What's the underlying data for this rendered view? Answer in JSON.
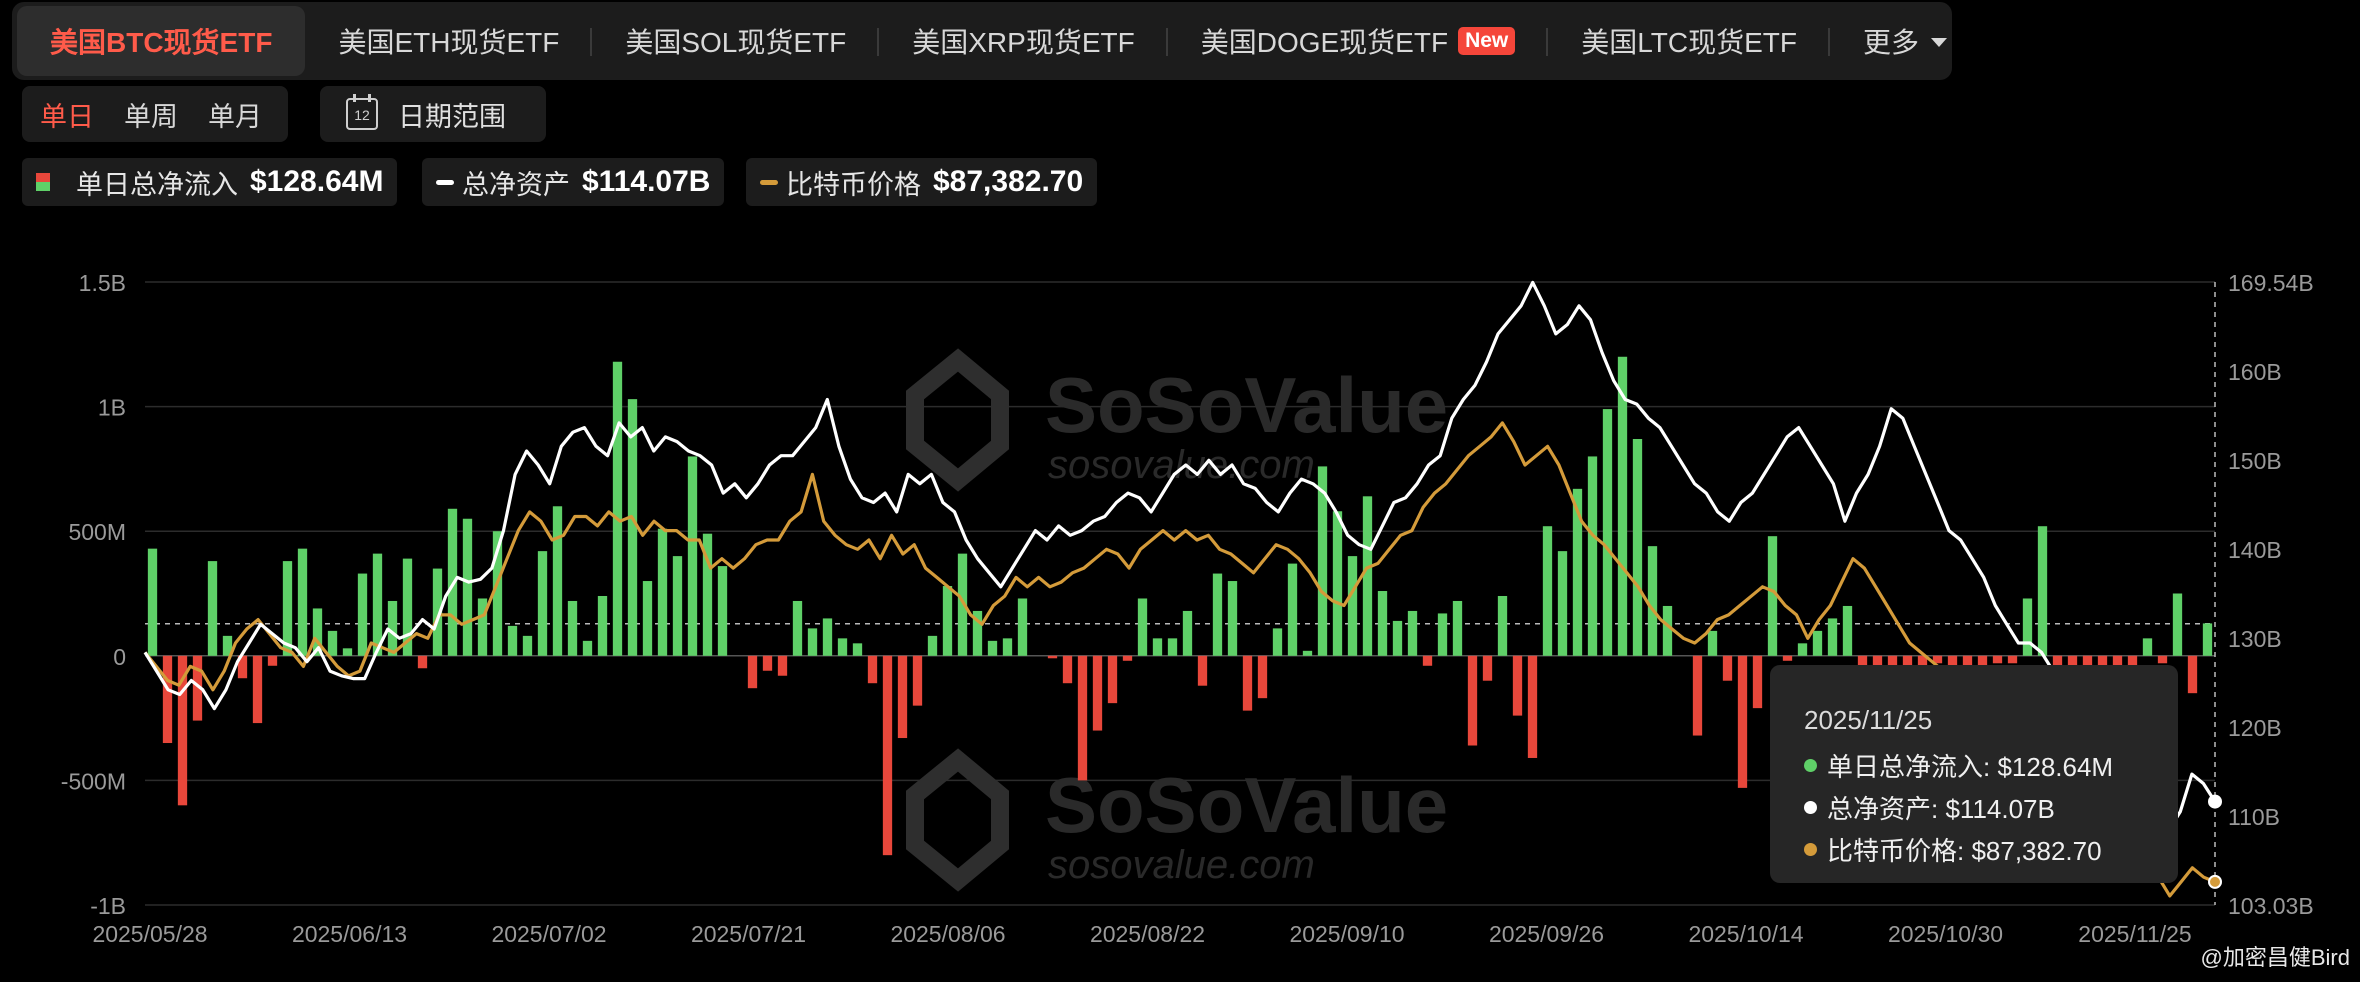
{
  "tabs": [
    {
      "label": "美国BTC现货ETF",
      "active": true
    },
    {
      "label": "美国ETH现货ETF"
    },
    {
      "label": "美国SOL现货ETF"
    },
    {
      "label": "美国XRP现货ETF"
    },
    {
      "label": "美国DOGE现货ETF",
      "badge": "New"
    },
    {
      "label": "美国LTC现货ETF"
    },
    {
      "label": "更多"
    }
  ],
  "period": {
    "daily": "单日",
    "weekly": "单周",
    "monthly": "单月"
  },
  "date_range": {
    "label": "日期范围",
    "icon_text": "12"
  },
  "legend": {
    "flow_label": "单日总净流入",
    "flow_value": "$128.64M",
    "assets_label": "总净资产",
    "assets_value": "$114.07B",
    "price_label": "比特币价格",
    "price_value": "$87,382.70"
  },
  "watermark": {
    "brand": "SoSoValue",
    "url": "sosovalue.com"
  },
  "tooltip": {
    "date": "2025/11/25",
    "flow": "单日总净流入: $128.64M",
    "assets": "总净资产: $114.07B",
    "price": "比特币价格: $87,382.70"
  },
  "credit": "@加密昌健Bird",
  "colors": {
    "inflow": "#5fd068",
    "outflow": "#e8473b",
    "assets": "#ffffff",
    "price": "#d49b3a"
  },
  "chart_data": {
    "type": "bar",
    "y_left": {
      "ticks": [
        "1.5B",
        "1B",
        "500M",
        "0",
        "-500M",
        "-1B"
      ],
      "range": [
        -1000,
        1500
      ],
      "unit": "M"
    },
    "y_right": {
      "ticks": [
        "169.54B",
        "160B",
        "150B",
        "140B",
        "130B",
        "120B",
        "110B",
        "103.03B"
      ],
      "range": [
        103.03,
        169.54
      ],
      "unit": "B"
    },
    "x_ticks": [
      "2025/05/28",
      "2025/06/13",
      "2025/07/02",
      "2025/07/21",
      "2025/08/06",
      "2025/08/22",
      "2025/09/10",
      "2025/09/26",
      "2025/10/14",
      "2025/10/30",
      "2025/11/25"
    ],
    "series": [
      {
        "name": "单日总净流入",
        "kind": "bar",
        "values": [
          430,
          -350,
          -600,
          -260,
          380,
          80,
          -90,
          -270,
          -40,
          380,
          430,
          190,
          100,
          30,
          330,
          410,
          220,
          390,
          -50,
          350,
          590,
          550,
          230,
          500,
          120,
          80,
          420,
          600,
          220,
          60,
          240,
          1180,
          1030,
          300,
          510,
          400,
          800,
          490,
          360,
          0,
          -130,
          -60,
          -80,
          220,
          110,
          150,
          70,
          50,
          -110,
          -800,
          -330,
          -200,
          80,
          280,
          410,
          180,
          60,
          70,
          230,
          0,
          -10,
          -110,
          -500,
          -300,
          -190,
          -20,
          230,
          70,
          70,
          180,
          -120,
          330,
          300,
          -220,
          -170,
          110,
          370,
          20,
          760,
          580,
          400,
          640,
          260,
          140,
          180,
          -40,
          170,
          220,
          -360,
          -100,
          240,
          -240,
          -410,
          520,
          420,
          670,
          800,
          990,
          1200,
          870,
          440,
          200,
          0,
          -320,
          100,
          -100,
          -530,
          -210,
          480,
          -20,
          50,
          100,
          150,
          200,
          -40,
          -40,
          -40,
          -40,
          -40,
          -30,
          -40,
          -40,
          -40,
          -30,
          -30,
          230,
          520,
          -40,
          -40,
          -40,
          -40,
          -40,
          -40,
          70,
          -30,
          250,
          -150,
          130
        ]
      },
      {
        "name": "总净资产",
        "kind": "line",
        "values": [
          130.0,
          128.0,
          126.0,
          125.5,
          127.0,
          126.0,
          124.0,
          126.0,
          129.0,
          131.0,
          133.0,
          132.0,
          131.0,
          130.5,
          129.0,
          130.5,
          128.0,
          127.5,
          127.2,
          127.2,
          130.0,
          132.5,
          131.5,
          132.0,
          133.5,
          132.5,
          136.0,
          138.0,
          137.5,
          137.8,
          139.0,
          143.0,
          149.0,
          151.5,
          150.0,
          148.0,
          152.0,
          153.5,
          154.0,
          152.0,
          151.0,
          154.5,
          153.0,
          154.0,
          151.5,
          153.0,
          152.5,
          151.5,
          151.0,
          150.0,
          147.0,
          148.0,
          146.5,
          148.0,
          150.0,
          151.0,
          151.0,
          152.5,
          154.0,
          157.0,
          152.0,
          148.5,
          146.5,
          146.0,
          147.0,
          145.0,
          149.0,
          148.0,
          149.0,
          146.0,
          145.0,
          142.0,
          140.0,
          138.5,
          137.0,
          139.0,
          141.0,
          143.0,
          142.0,
          143.5,
          142.5,
          143.0,
          144.0,
          144.5,
          146.0,
          147.0,
          146.5,
          145.0,
          147.0,
          149.0,
          150.0,
          149.0,
          150.5,
          149.0,
          150.0,
          148.0,
          147.5,
          146.0,
          145.0,
          147.0,
          148.5,
          148.0,
          147.0,
          145.0,
          142.5,
          141.5,
          141.0,
          143.5,
          146.0,
          146.5,
          148.0,
          150.0,
          151.0,
          155.0,
          157.0,
          158.5,
          161.0,
          164.0,
          165.5,
          167.0,
          169.5,
          167.0,
          164.0,
          165.0,
          167.0,
          165.5,
          162.0,
          159.0,
          157.0,
          156.5,
          155.0,
          154.0,
          152.0,
          150.0,
          148.0,
          147.0,
          145.0,
          144.0,
          146.0,
          147.0,
          149.0,
          151.0,
          153.0,
          154.0,
          152.0,
          150.0,
          148.0,
          144.0,
          147.0,
          149.0,
          152.0,
          156.0,
          155.0,
          152.0,
          149.0,
          146.0,
          143.0,
          142.0,
          140.0,
          138.0,
          135.0,
          133.0,
          131.0,
          131.0,
          130.0,
          128.0,
          126.0,
          124.0,
          122.0,
          121.0,
          119.0,
          117.0,
          115.0,
          112.0,
          111.0,
          111.0,
          113.0,
          117.0,
          116.0,
          114.07
        ]
      },
      {
        "name": "比特币价格",
        "kind": "line",
        "axis": "right",
        "values": [
          130.0,
          128.5,
          127.0,
          126.5,
          128.5,
          128.0,
          126.0,
          128.0,
          131.0,
          132.5,
          133.5,
          132.0,
          130.5,
          130.0,
          128.5,
          131.5,
          130.0,
          128.5,
          127.5,
          128.0,
          131.0,
          130.5,
          130.0,
          131.0,
          132.0,
          131.5,
          134.0,
          134.0,
          133.0,
          133.5,
          134.0,
          137.0,
          140.0,
          143.0,
          145.0,
          144.0,
          142.0,
          142.5,
          144.5,
          144.5,
          143.5,
          145.0,
          144.0,
          144.5,
          142.5,
          144.0,
          143.0,
          143.0,
          142.0,
          142.0,
          139.0,
          140.0,
          139.0,
          140.0,
          141.5,
          142.0,
          142.0,
          144.0,
          145.0,
          149.0,
          144.0,
          142.5,
          141.5,
          141.0,
          142.0,
          140.0,
          142.5,
          140.5,
          141.5,
          139.0,
          138.0,
          137.0,
          136.0,
          134.0,
          133.0,
          135.0,
          136.0,
          138.0,
          137.0,
          138.0,
          137.0,
          137.5,
          138.5,
          139.0,
          140.0,
          141.0,
          140.5,
          139.0,
          141.0,
          142.0,
          143.0,
          142.0,
          143.0,
          142.0,
          142.5,
          141.0,
          140.5,
          139.5,
          138.5,
          140.0,
          141.5,
          141.0,
          140.0,
          138.5,
          136.5,
          135.5,
          135.0,
          137.0,
          139.0,
          139.5,
          141.0,
          142.5,
          143.0,
          145.5,
          147.0,
          148.0,
          149.5,
          151.0,
          152.0,
          153.0,
          154.5,
          152.5,
          150.0,
          151.0,
          152.0,
          150.0,
          147.0,
          144.0,
          142.5,
          141.5,
          140.0,
          138.5,
          137.0,
          135.0,
          133.5,
          132.5,
          131.5,
          131.0,
          132.0,
          133.5,
          134.0,
          135.0,
          136.0,
          137.0,
          136.5,
          135.0,
          134.0,
          131.5,
          133.5,
          135.0,
          137.5,
          140.0,
          139.0,
          137.0,
          135.0,
          133.0,
          131.0,
          130.0,
          129.0,
          128.0,
          127.0,
          126.0,
          125.0,
          124.0,
          123.0,
          122.0,
          121.0,
          120.0,
          119.0,
          118.0,
          117.0,
          116.0,
          115.0,
          114.0,
          113.0,
          112.0,
          110.0,
          108.0,
          106.0,
          104.0,
          105.5,
          107.0,
          106.0,
          105.5
        ]
      }
    ],
    "grid": true,
    "crosshair_date": "2025/11/25"
  }
}
